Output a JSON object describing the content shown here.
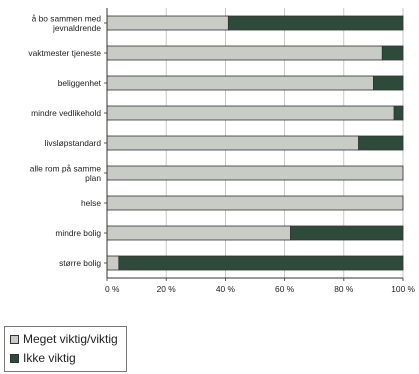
{
  "chart_data": {
    "type": "bar",
    "orientation": "horizontal",
    "stacked": true,
    "percent_stacked": true,
    "categories": [
      "å bo sammen med jevnaldrende",
      "vaktmester tjeneste",
      "beliggenhet",
      "mindre vedlikehold",
      "livsløpstandard",
      "alle rom på samme plan",
      "helse",
      "mindre bolig",
      "større bolig"
    ],
    "category_lines": [
      [
        "å bo sammen med",
        "jevnaldrende"
      ],
      [
        "vaktmester tjeneste"
      ],
      [
        "beliggenhet"
      ],
      [
        "mindre vedlikehold"
      ],
      [
        "livsløpstandard"
      ],
      [
        "alle rom på samme",
        "plan"
      ],
      [
        "helse"
      ],
      [
        "mindre bolig"
      ],
      [
        "større bolig"
      ]
    ],
    "series": [
      {
        "name": "Meget viktig/viktig",
        "values": [
          41,
          93,
          90,
          97,
          85,
          100,
          100,
          62,
          4
        ],
        "color": "#c9ccc6"
      },
      {
        "name": "Ikke viktig",
        "values": [
          59,
          7,
          10,
          3,
          15,
          0,
          0,
          38,
          96
        ],
        "color": "#2e4a3a"
      }
    ],
    "xlim": [
      0,
      100
    ],
    "x_ticks": [
      "0 %",
      "20 %",
      "40 %",
      "60 %",
      "80 %",
      "100 %"
    ],
    "grid": true,
    "legend_position": "bottom-left",
    "title": "",
    "xlabel": "",
    "ylabel": ""
  }
}
